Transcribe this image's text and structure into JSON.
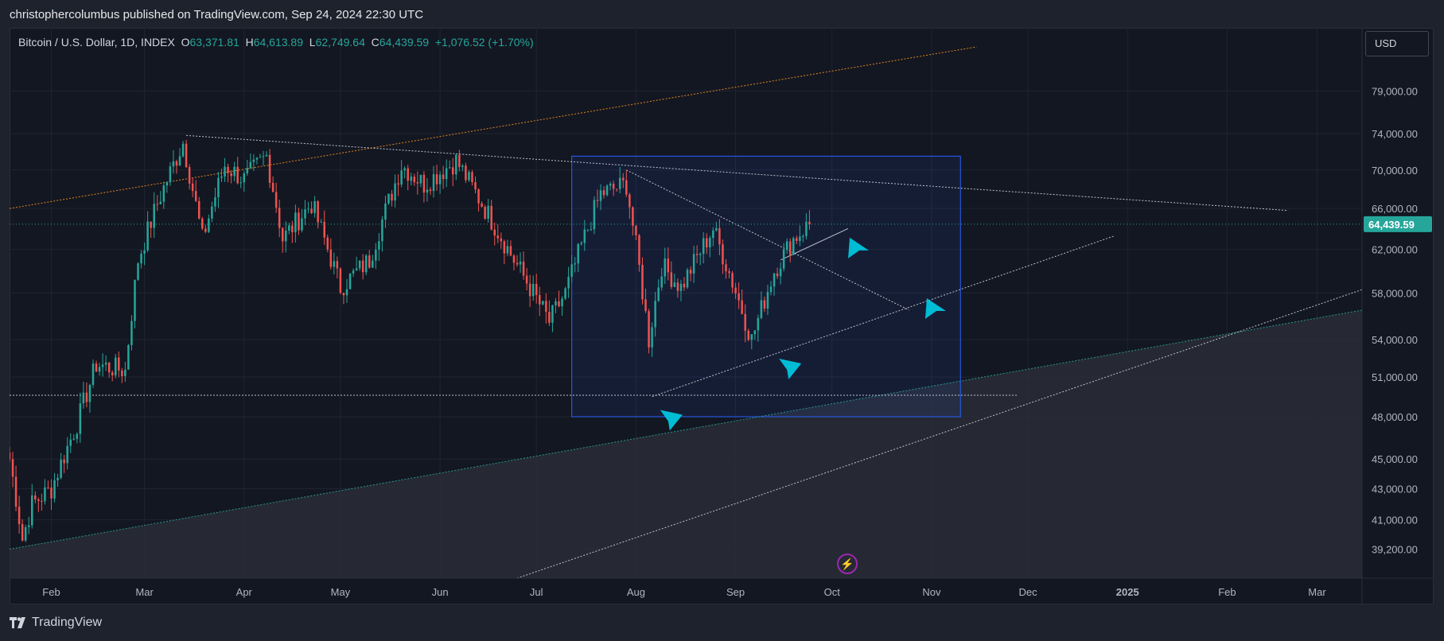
{
  "header": {
    "publish_line": "christophercolumbus published on TradingView.com, Sep 24, 2024 22:30 UTC"
  },
  "legend": {
    "symbol": "Bitcoin / U.S. Dollar, 1D, INDEX",
    "o_label": "O",
    "o_value": "63,371.81",
    "h_label": "H",
    "h_value": "64,613.89",
    "l_label": "L",
    "l_value": "62,749.64",
    "c_label": "C",
    "c_value": "64,439.59",
    "change": "+1,076.52 (+1.70%)"
  },
  "toolbar": {
    "currency": "USD"
  },
  "footer": {
    "brand": "TradingView"
  },
  "icons": {
    "logo": "tradingview-logo-icon",
    "bolt": "lightning-bolt-icon"
  },
  "colors": {
    "up": "#26a69a",
    "down": "#ef5350",
    "orange_line": "#f7931a",
    "teal_line": "#26a69a",
    "box": "#2962ff",
    "arrow": "#00bcd4",
    "price_tag": "#26a69a"
  },
  "chart_data": {
    "type": "candlestick",
    "symbol": "Bitcoin / U.S. Dollar, 1D, INDEX",
    "y_scale": "log",
    "ylim": [
      37500,
      87000
    ],
    "x_range": [
      "2024-01-19",
      "2025-03-15"
    ],
    "y_tick_labels": [
      "79,000.00",
      "74,000.00",
      "70,000.00",
      "66,000.00",
      "62,000.00",
      "58,000.00",
      "54,000.00",
      "51,000.00",
      "48,000.00",
      "45,000.00",
      "43,000.00",
      "41,000.00",
      "39,200.00"
    ],
    "x_tick_labels": [
      {
        "label": "Feb",
        "date": "2024-02-01"
      },
      {
        "label": "Mar",
        "date": "2024-03-01"
      },
      {
        "label": "Apr",
        "date": "2024-04-01"
      },
      {
        "label": "May",
        "date": "2024-05-01"
      },
      {
        "label": "Jun",
        "date": "2024-06-01"
      },
      {
        "label": "Jul",
        "date": "2024-07-01"
      },
      {
        "label": "Aug",
        "date": "2024-08-01"
      },
      {
        "label": "Sep",
        "date": "2024-09-01"
      },
      {
        "label": "Oct",
        "date": "2024-10-01"
      },
      {
        "label": "Nov",
        "date": "2024-11-01"
      },
      {
        "label": "Dec",
        "date": "2024-12-01"
      },
      {
        "label": "2025",
        "date": "2025-01-01"
      },
      {
        "label": "Feb",
        "date": "2025-02-01"
      },
      {
        "label": "Mar",
        "date": "2025-03-01"
      }
    ],
    "last_price": 64439.59,
    "last_price_label": "64,439.59",
    "price_anchors": [
      {
        "date": "2024-01-19",
        "price": 45000
      },
      {
        "date": "2024-01-23",
        "price": 39800
      },
      {
        "date": "2024-01-26",
        "price": 42000
      },
      {
        "date": "2024-02-01",
        "price": 43000
      },
      {
        "date": "2024-02-09",
        "price": 47500
      },
      {
        "date": "2024-02-15",
        "price": 52000
      },
      {
        "date": "2024-02-24",
        "price": 51500
      },
      {
        "date": "2024-02-28",
        "price": 61000
      },
      {
        "date": "2024-03-05",
        "price": 66500
      },
      {
        "date": "2024-03-13",
        "price": 73000
      },
      {
        "date": "2024-03-19",
        "price": 63000
      },
      {
        "date": "2024-03-26",
        "price": 70500
      },
      {
        "date": "2024-04-01",
        "price": 69000
      },
      {
        "date": "2024-04-08",
        "price": 71500
      },
      {
        "date": "2024-04-13",
        "price": 63000
      },
      {
        "date": "2024-04-22",
        "price": 66500
      },
      {
        "date": "2024-05-01",
        "price": 58500
      },
      {
        "date": "2024-05-10",
        "price": 61000
      },
      {
        "date": "2024-05-20",
        "price": 70500
      },
      {
        "date": "2024-05-27",
        "price": 68500
      },
      {
        "date": "2024-06-06",
        "price": 71000
      },
      {
        "date": "2024-06-14",
        "price": 66500
      },
      {
        "date": "2024-06-24",
        "price": 61000
      },
      {
        "date": "2024-07-05",
        "price": 55500
      },
      {
        "date": "2024-07-10",
        "price": 58000
      },
      {
        "date": "2024-07-21",
        "price": 67500
      },
      {
        "date": "2024-07-29",
        "price": 68500
      },
      {
        "date": "2024-08-05",
        "price": 54000
      },
      {
        "date": "2024-08-09",
        "price": 60500
      },
      {
        "date": "2024-08-15",
        "price": 58500
      },
      {
        "date": "2024-08-25",
        "price": 64000
      },
      {
        "date": "2024-09-06",
        "price": 54000
      },
      {
        "date": "2024-09-13",
        "price": 60000
      },
      {
        "date": "2024-09-19",
        "price": 63000
      },
      {
        "date": "2024-09-24",
        "price": 64439.59
      }
    ],
    "annotations": [
      {
        "type": "trendline",
        "style": "dotted",
        "color": "#f7931a",
        "from": {
          "date": "2024-01-19",
          "price": 66000
        },
        "to": {
          "date": "2024-11-15",
          "price": 84500
        }
      },
      {
        "type": "trendline",
        "style": "dotted",
        "color": "#d1d4dc",
        "from": {
          "date": "2024-03-14",
          "price": 73800
        },
        "to": {
          "date": "2025-02-20",
          "price": 65800
        }
      },
      {
        "type": "trendline",
        "style": "dotted",
        "color": "#26a69a",
        "from": {
          "date": "2024-01-19",
          "price": 39200
        },
        "to": {
          "date": "2025-03-15",
          "price": 56500
        }
      },
      {
        "type": "trendline",
        "style": "dotted",
        "color": "#d1d4dc",
        "from": {
          "date": "2024-06-25",
          "price": 37500
        },
        "to": {
          "date": "2025-03-15",
          "price": 58300
        }
      },
      {
        "type": "trendline",
        "style": "dotted",
        "color": "#d1d4dc",
        "from": {
          "date": "2024-08-06",
          "price": 49500
        },
        "to": {
          "date": "2024-12-28",
          "price": 63300
        }
      },
      {
        "type": "trendline",
        "style": "dotted",
        "color": "#d1d4dc",
        "from": {
          "date": "2024-07-29",
          "price": 70000
        },
        "to": {
          "date": "2024-10-25",
          "price": 56500
        }
      },
      {
        "type": "trendline",
        "style": "solid",
        "color": "#d1d4dc",
        "from": {
          "date": "2024-09-15",
          "price": 61000
        },
        "to": {
          "date": "2024-10-06",
          "price": 64000
        }
      },
      {
        "type": "hline",
        "style": "dotted",
        "color": "#d1d4dc",
        "from": {
          "date": "2024-01-19",
          "price": 49600
        },
        "to": {
          "date": "2024-11-28",
          "price": 49600
        }
      },
      {
        "type": "rectangle",
        "color": "#2962ff",
        "from": {
          "date": "2024-07-12",
          "price": 71500
        },
        "to": {
          "date": "2024-11-10",
          "price": 48000
        }
      }
    ],
    "arrows": [
      {
        "date": "2024-08-12",
        "price": 47800,
        "direction": "down"
      },
      {
        "date": "2024-09-18",
        "price": 51700,
        "direction": "down"
      },
      {
        "date": "2024-10-09",
        "price": 62200,
        "direction": "up"
      },
      {
        "date": "2024-11-02",
        "price": 56700,
        "direction": "up"
      }
    ]
  }
}
